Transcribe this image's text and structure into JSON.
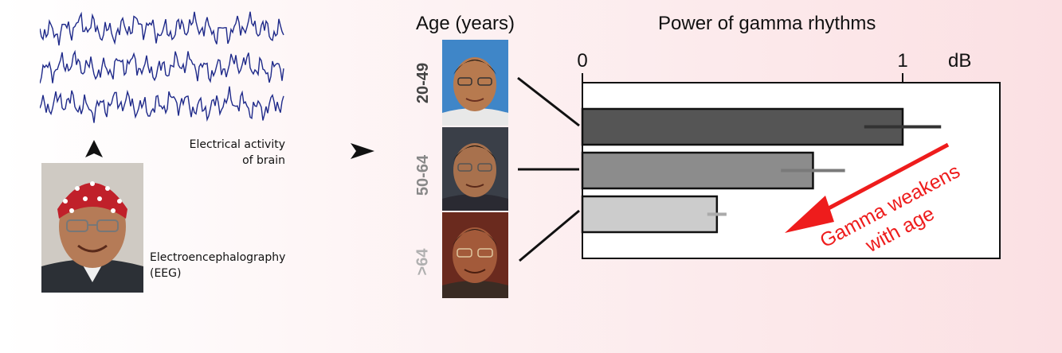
{
  "eeg": {
    "caption_line1": "Electrical activity",
    "caption_line2": "of brain",
    "method_line1": "Electroencephalography",
    "method_line2": "(EEG)",
    "trace_color": "#1f2a8a"
  },
  "panel": {
    "age_title": "Age (years)",
    "power_title": "Power of gamma rhythms",
    "annotation_line1": "Gamma weakens",
    "annotation_line2": "with age",
    "annotation_color": "#ee1c1c"
  },
  "chart_data": {
    "type": "bar",
    "orientation": "horizontal",
    "categories": [
      "20-49",
      "50-64",
      ">64"
    ],
    "values": [
      1.0,
      0.72,
      0.42
    ],
    "errors": [
      0.12,
      0.1,
      0.03
    ],
    "bar_colors": [
      "#555555",
      "#8c8c8c",
      "#cccccc"
    ],
    "error_colors": [
      "#333333",
      "#7a7a7a",
      "#aaaaaa"
    ],
    "label_colors": [
      "#444444",
      "#888888",
      "#b0b0b0"
    ],
    "xticks": [
      "0",
      "1"
    ],
    "xunit": "dB",
    "xlim": [
      0,
      1.3
    ],
    "grid": false
  }
}
